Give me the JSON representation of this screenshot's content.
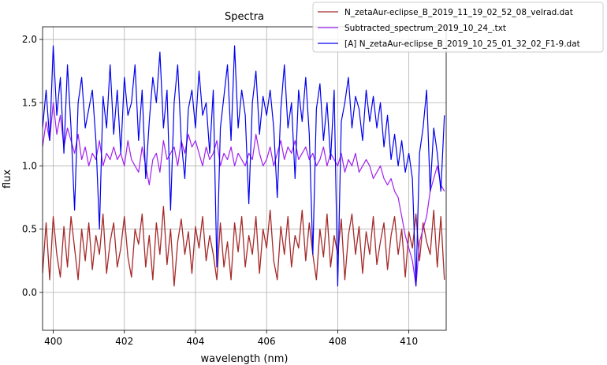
{
  "chart_data": {
    "type": "line",
    "title": "Spectra",
    "xlabel": "wavelength (nm)",
    "ylabel": "flux",
    "xlim": [
      399.7,
      411.05
    ],
    "ylim": [
      -0.3,
      2.1
    ],
    "xticks": [
      400,
      402,
      404,
      406,
      408,
      410
    ],
    "xtick_labels": [
      "400",
      "402",
      "404",
      "406",
      "408",
      "410"
    ],
    "yticks": [
      0.0,
      0.5,
      1.0,
      1.5,
      2.0
    ],
    "ytick_labels": [
      "0.0",
      "0.5",
      "1.0",
      "1.5",
      "2.0"
    ],
    "grid": true,
    "legend_position": "top-right, outside plot",
    "series": [
      {
        "name": "N_zetaAur-eclipse_B_2019_11_19_02_52_08_velrad.dat",
        "color": "#a52a2a",
        "x": [
          399.7,
          399.8,
          399.9,
          400.0,
          400.1,
          400.2,
          400.3,
          400.4,
          400.5,
          400.6,
          400.7,
          400.8,
          400.9,
          401.0,
          401.1,
          401.2,
          401.3,
          401.4,
          401.5,
          401.6,
          401.7,
          401.8,
          401.9,
          402.0,
          402.1,
          402.2,
          402.3,
          402.4,
          402.5,
          402.6,
          402.7,
          402.8,
          402.9,
          403.0,
          403.1,
          403.2,
          403.3,
          403.4,
          403.5,
          403.6,
          403.7,
          403.8,
          403.9,
          404.0,
          404.1,
          404.2,
          404.3,
          404.4,
          404.5,
          404.6,
          404.7,
          404.8,
          404.9,
          405.0,
          405.1,
          405.2,
          405.3,
          405.4,
          405.5,
          405.6,
          405.7,
          405.8,
          405.9,
          406.0,
          406.1,
          406.2,
          406.3,
          406.4,
          406.5,
          406.6,
          406.7,
          406.8,
          406.9,
          407.0,
          407.1,
          407.2,
          407.3,
          407.4,
          407.5,
          407.6,
          407.7,
          407.8,
          407.9,
          408.0,
          408.1,
          408.2,
          408.3,
          408.4,
          408.5,
          408.6,
          408.7,
          408.8,
          408.9,
          409.0,
          409.1,
          409.2,
          409.3,
          409.4,
          409.5,
          409.6,
          409.7,
          409.8,
          409.9,
          410.0,
          410.1,
          410.2,
          410.3,
          410.4,
          410.5,
          410.6,
          410.7,
          410.8,
          410.9,
          411.0
        ],
        "values": [
          0.15,
          0.55,
          0.1,
          0.6,
          0.3,
          0.12,
          0.52,
          0.2,
          0.6,
          0.35,
          0.1,
          0.5,
          0.25,
          0.55,
          0.18,
          0.45,
          0.3,
          0.62,
          0.15,
          0.4,
          0.55,
          0.2,
          0.35,
          0.6,
          0.28,
          0.12,
          0.5,
          0.38,
          0.62,
          0.2,
          0.45,
          0.1,
          0.55,
          0.3,
          0.68,
          0.22,
          0.5,
          0.05,
          0.4,
          0.58,
          0.3,
          0.48,
          0.15,
          0.52,
          0.35,
          0.6,
          0.25,
          0.45,
          0.3,
          0.1,
          0.55,
          0.2,
          0.4,
          0.1,
          0.55,
          0.32,
          0.6,
          0.2,
          0.45,
          0.3,
          0.6,
          0.15,
          0.5,
          0.35,
          0.65,
          0.25,
          0.1,
          0.52,
          0.3,
          0.6,
          0.2,
          0.45,
          0.35,
          0.65,
          0.25,
          0.55,
          0.3,
          0.1,
          0.5,
          0.28,
          0.62,
          0.2,
          0.45,
          0.3,
          0.58,
          0.1,
          0.45,
          0.62,
          0.3,
          0.52,
          0.15,
          0.48,
          0.3,
          0.6,
          0.22,
          0.4,
          0.55,
          0.18,
          0.45,
          0.6,
          0.3,
          0.5,
          0.12,
          0.48,
          0.35,
          0.62,
          0.25,
          0.55,
          0.4,
          0.3,
          0.65,
          0.2,
          0.6,
          0.1
        ],
        "width": 1.3
      },
      {
        "name": "Subtracted_spectrum_2019_10_24_.txt",
        "color": "#a020f0",
        "x": [
          399.7,
          399.8,
          399.9,
          400.0,
          400.1,
          400.2,
          400.3,
          400.4,
          400.5,
          400.6,
          400.7,
          400.8,
          400.9,
          401.0,
          401.1,
          401.2,
          401.3,
          401.4,
          401.5,
          401.6,
          401.7,
          401.8,
          401.9,
          402.0,
          402.1,
          402.2,
          402.3,
          402.4,
          402.5,
          402.6,
          402.7,
          402.8,
          402.9,
          403.0,
          403.1,
          403.2,
          403.3,
          403.4,
          403.5,
          403.6,
          403.7,
          403.8,
          403.9,
          404.0,
          404.1,
          404.2,
          404.3,
          404.4,
          404.5,
          404.6,
          404.7,
          404.8,
          404.9,
          405.0,
          405.1,
          405.2,
          405.3,
          405.4,
          405.5,
          405.6,
          405.7,
          405.8,
          405.9,
          406.0,
          406.1,
          406.2,
          406.3,
          406.4,
          406.5,
          406.6,
          406.7,
          406.8,
          406.9,
          407.0,
          407.1,
          407.2,
          407.3,
          407.4,
          407.5,
          407.6,
          407.7,
          407.8,
          407.9,
          408.0,
          408.1,
          408.2,
          408.3,
          408.4,
          408.5,
          408.6,
          408.7,
          408.8,
          408.9,
          409.0,
          409.1,
          409.2,
          409.3,
          409.4,
          409.5,
          409.6,
          409.7,
          409.8,
          409.9,
          410.0,
          410.1,
          410.2,
          410.3,
          410.4,
          410.5,
          410.6,
          410.7,
          410.8,
          410.9,
          411.0
        ],
        "values": [
          1.15,
          1.35,
          1.2,
          1.5,
          1.25,
          1.4,
          1.15,
          1.3,
          1.2,
          1.1,
          1.25,
          1.05,
          1.15,
          1.0,
          1.1,
          1.05,
          1.2,
          1.0,
          1.1,
          1.05,
          1.15,
          1.05,
          1.1,
          1.0,
          1.2,
          1.05,
          1.0,
          0.95,
          1.15,
          1.0,
          0.85,
          1.05,
          1.1,
          0.95,
          1.2,
          1.05,
          1.1,
          1.15,
          1.0,
          1.2,
          1.1,
          1.25,
          1.15,
          1.2,
          1.1,
          1.0,
          1.15,
          1.05,
          1.1,
          1.2,
          1.0,
          1.1,
          1.05,
          1.15,
          1.0,
          1.1,
          1.05,
          1.0,
          1.1,
          1.05,
          1.25,
          1.1,
          1.0,
          1.05,
          1.15,
          1.0,
          1.1,
          1.2,
          1.05,
          1.15,
          1.1,
          1.2,
          1.05,
          1.1,
          1.15,
          1.05,
          1.1,
          1.0,
          1.05,
          1.15,
          1.0,
          1.1,
          1.05,
          1.0,
          1.1,
          0.95,
          1.05,
          1.0,
          1.1,
          0.95,
          1.0,
          1.05,
          1.0,
          0.9,
          0.95,
          1.0,
          0.9,
          0.85,
          0.9,
          0.8,
          0.75,
          0.6,
          0.45,
          0.35,
          0.25,
          0.05,
          0.4,
          0.5,
          0.6,
          0.8,
          0.9,
          1.0,
          0.85,
          0.8
        ],
        "width": 1.2
      },
      {
        "name": "[A] N_zetaAur-eclipse_B_2019_10_25_01_32_02_F1-9.dat",
        "color": "#0000ee",
        "x": [
          399.7,
          399.8,
          399.9,
          400.0,
          400.1,
          400.2,
          400.3,
          400.4,
          400.5,
          400.6,
          400.7,
          400.8,
          400.9,
          401.0,
          401.1,
          401.2,
          401.3,
          401.4,
          401.5,
          401.6,
          401.7,
          401.8,
          401.9,
          402.0,
          402.1,
          402.2,
          402.3,
          402.4,
          402.5,
          402.6,
          402.7,
          402.8,
          402.9,
          403.0,
          403.1,
          403.2,
          403.3,
          403.4,
          403.5,
          403.6,
          403.7,
          403.8,
          403.9,
          404.0,
          404.1,
          404.2,
          404.3,
          404.4,
          404.5,
          404.6,
          404.7,
          404.8,
          404.9,
          405.0,
          405.1,
          405.2,
          405.3,
          405.4,
          405.5,
          405.6,
          405.7,
          405.8,
          405.9,
          406.0,
          406.1,
          406.2,
          406.3,
          406.4,
          406.5,
          406.6,
          406.7,
          406.8,
          406.9,
          407.0,
          407.1,
          407.2,
          407.3,
          407.4,
          407.5,
          407.6,
          407.7,
          407.8,
          407.9,
          408.0,
          408.1,
          408.2,
          408.3,
          408.4,
          408.5,
          408.6,
          408.7,
          408.8,
          408.9,
          409.0,
          409.1,
          409.2,
          409.3,
          409.4,
          409.5,
          409.6,
          409.7,
          409.8,
          409.9,
          410.0,
          410.1,
          410.2,
          410.3,
          410.4,
          410.5,
          410.6,
          410.7,
          410.8,
          410.9,
          411.0
        ],
        "values": [
          1.3,
          1.6,
          1.2,
          1.95,
          1.4,
          1.7,
          1.1,
          1.8,
          1.3,
          0.65,
          1.5,
          1.7,
          1.3,
          1.45,
          1.6,
          1.2,
          0.5,
          1.55,
          1.3,
          1.8,
          1.25,
          1.6,
          1.1,
          1.7,
          1.4,
          1.5,
          1.8,
          1.2,
          1.6,
          0.9,
          1.35,
          1.7,
          1.5,
          1.9,
          1.3,
          1.6,
          0.65,
          1.5,
          1.8,
          1.2,
          0.9,
          1.45,
          1.6,
          1.3,
          1.75,
          1.4,
          1.5,
          1.1,
          1.6,
          0.2,
          1.3,
          1.55,
          1.8,
          1.2,
          1.95,
          1.3,
          1.6,
          1.4,
          0.7,
          1.5,
          1.75,
          1.25,
          1.55,
          1.4,
          1.6,
          1.3,
          0.75,
          1.45,
          1.8,
          1.3,
          1.5,
          0.9,
          1.6,
          1.35,
          1.7,
          1.25,
          0.3,
          1.45,
          1.65,
          1.2,
          1.5,
          1.05,
          1.6,
          0.05,
          1.35,
          1.5,
          1.7,
          1.3,
          1.55,
          1.45,
          1.2,
          1.6,
          1.35,
          1.55,
          1.3,
          1.5,
          1.15,
          1.4,
          1.05,
          1.25,
          1.0,
          1.2,
          0.95,
          1.1,
          0.9,
          0.05,
          1.1,
          1.3,
          1.6,
          0.8,
          1.3,
          1.1,
          0.8,
          1.4
        ],
        "width": 1.2
      }
    ]
  }
}
